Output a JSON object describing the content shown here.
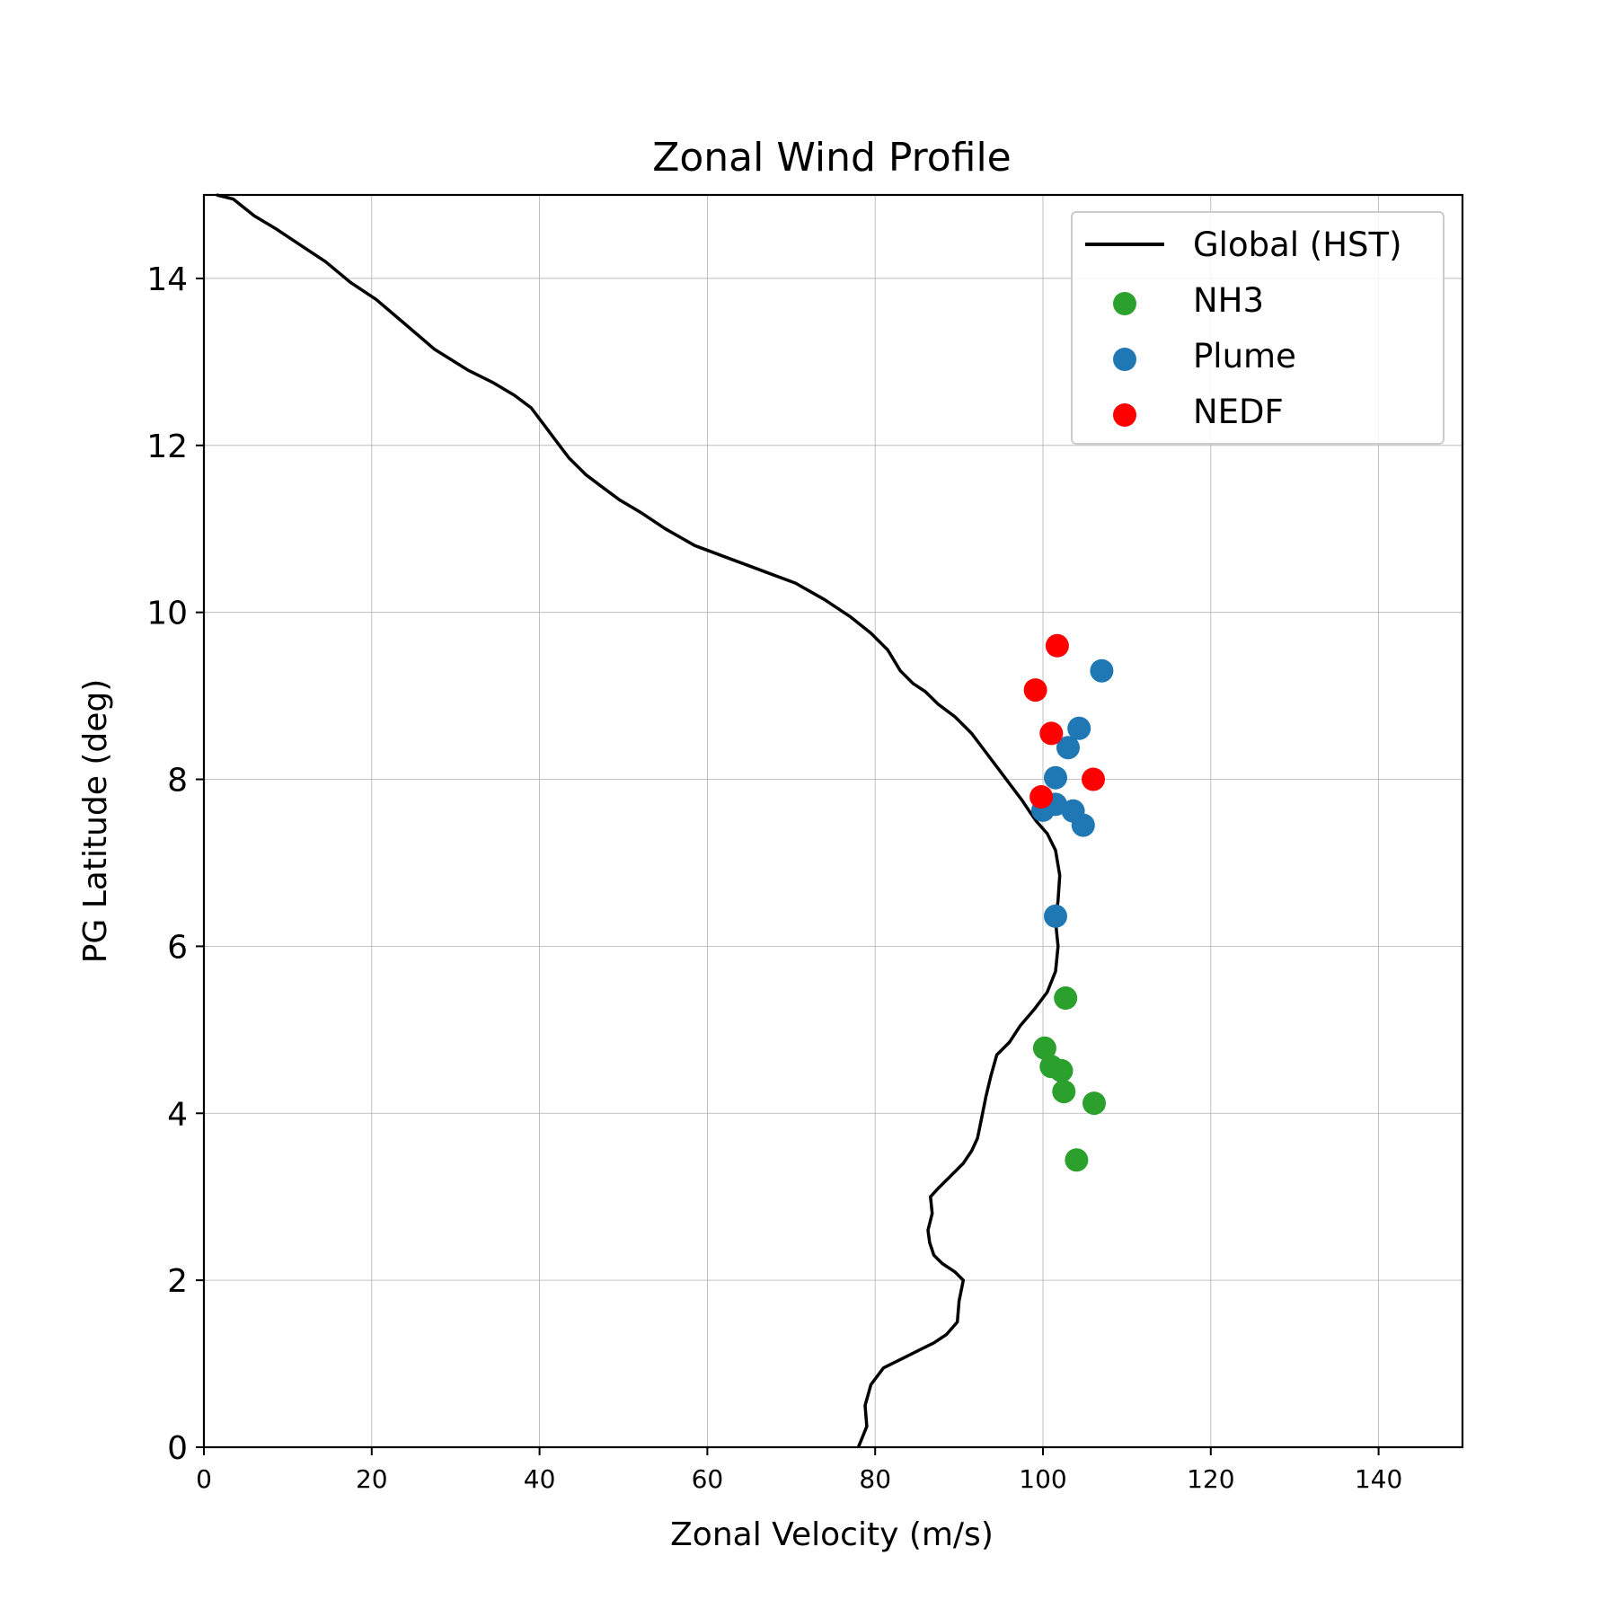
{
  "chart_data": {
    "type": "scatter",
    "title": "Zonal Wind Profile",
    "xlabel": "Zonal Velocity (m/s)",
    "ylabel": "PG Latitude (deg)",
    "xlim": [
      0,
      150
    ],
    "ylim": [
      0,
      15
    ],
    "xticks": [
      0,
      20,
      40,
      60,
      80,
      100,
      120,
      140
    ],
    "yticks": [
      0,
      2,
      4,
      6,
      8,
      10,
      12,
      14
    ],
    "grid": true,
    "legend_position": "top-right",
    "series": [
      {
        "name": "Global (HST)",
        "kind": "line",
        "color": "#000000",
        "points": [
          [
            78,
            0.0
          ],
          [
            79,
            0.25
          ],
          [
            78.8,
            0.5
          ],
          [
            79.5,
            0.75
          ],
          [
            81,
            0.95
          ],
          [
            83,
            1.05
          ],
          [
            85,
            1.15
          ],
          [
            87,
            1.25
          ],
          [
            88.5,
            1.35
          ],
          [
            89.8,
            1.5
          ],
          [
            90,
            1.75
          ],
          [
            90.5,
            2.0
          ],
          [
            89.5,
            2.1
          ],
          [
            88,
            2.2
          ],
          [
            87,
            2.3
          ],
          [
            86.5,
            2.45
          ],
          [
            86.3,
            2.6
          ],
          [
            86.8,
            2.8
          ],
          [
            86.6,
            3.0
          ],
          [
            87.5,
            3.1
          ],
          [
            89,
            3.25
          ],
          [
            90.5,
            3.4
          ],
          [
            91.5,
            3.55
          ],
          [
            92.2,
            3.7
          ],
          [
            92.6,
            3.9
          ],
          [
            93.2,
            4.2
          ],
          [
            93.8,
            4.45
          ],
          [
            94.5,
            4.7
          ],
          [
            96,
            4.85
          ],
          [
            97.3,
            5.05
          ],
          [
            99,
            5.25
          ],
          [
            100.5,
            5.45
          ],
          [
            101.5,
            5.7
          ],
          [
            101.8,
            6.0
          ],
          [
            101.5,
            6.3
          ],
          [
            101.8,
            6.55
          ],
          [
            102,
            6.85
          ],
          [
            101.5,
            7.15
          ],
          [
            100.5,
            7.35
          ],
          [
            99.2,
            7.5
          ],
          [
            98.5,
            7.6
          ],
          [
            97.5,
            7.75
          ],
          [
            96,
            7.95
          ],
          [
            94.5,
            8.15
          ],
          [
            93,
            8.35
          ],
          [
            91.5,
            8.55
          ],
          [
            89.5,
            8.75
          ],
          [
            87.5,
            8.9
          ],
          [
            86,
            9.05
          ],
          [
            84.5,
            9.15
          ],
          [
            83,
            9.3
          ],
          [
            81.5,
            9.55
          ],
          [
            79.5,
            9.75
          ],
          [
            77,
            9.95
          ],
          [
            74,
            10.15
          ],
          [
            70.5,
            10.35
          ],
          [
            66.5,
            10.5
          ],
          [
            62.5,
            10.65
          ],
          [
            58.5,
            10.8
          ],
          [
            55,
            11.0
          ],
          [
            52,
            11.2
          ],
          [
            49.5,
            11.35
          ],
          [
            47.5,
            11.5
          ],
          [
            45.5,
            11.65
          ],
          [
            43.5,
            11.85
          ],
          [
            42,
            12.05
          ],
          [
            40.5,
            12.25
          ],
          [
            39,
            12.45
          ],
          [
            37,
            12.6
          ],
          [
            34.5,
            12.75
          ],
          [
            31.5,
            12.9
          ],
          [
            27.5,
            13.15
          ],
          [
            24,
            13.45
          ],
          [
            20.5,
            13.75
          ],
          [
            17.5,
            13.95
          ],
          [
            14.5,
            14.2
          ],
          [
            11.5,
            14.4
          ],
          [
            8.5,
            14.6
          ],
          [
            6,
            14.75
          ],
          [
            3.5,
            14.95
          ],
          [
            1.5,
            15.0
          ]
        ]
      },
      {
        "name": "NH3",
        "kind": "scatter",
        "color": "#2ca02c",
        "points": [
          [
            102.7,
            5.38
          ],
          [
            100.2,
            4.78
          ],
          [
            101.0,
            4.56
          ],
          [
            102.2,
            4.51
          ],
          [
            102.5,
            4.26
          ],
          [
            106.1,
            4.12
          ],
          [
            104.0,
            3.44
          ]
        ]
      },
      {
        "name": "Plume",
        "kind": "scatter",
        "color": "#1f77b4",
        "points": [
          [
            107.0,
            9.3
          ],
          [
            104.3,
            8.61
          ],
          [
            103.0,
            8.38
          ],
          [
            101.5,
            8.02
          ],
          [
            101.5,
            7.7
          ],
          [
            100.0,
            7.63
          ],
          [
            103.6,
            7.62
          ],
          [
            104.8,
            7.45
          ],
          [
            101.5,
            6.36
          ]
        ]
      },
      {
        "name": "NEDF",
        "kind": "scatter",
        "color": "#ff0000",
        "points": [
          [
            101.7,
            9.6
          ],
          [
            99.1,
            9.07
          ],
          [
            101.0,
            8.55
          ],
          [
            106.0,
            8.0
          ],
          [
            99.8,
            7.79
          ]
        ]
      }
    ]
  }
}
